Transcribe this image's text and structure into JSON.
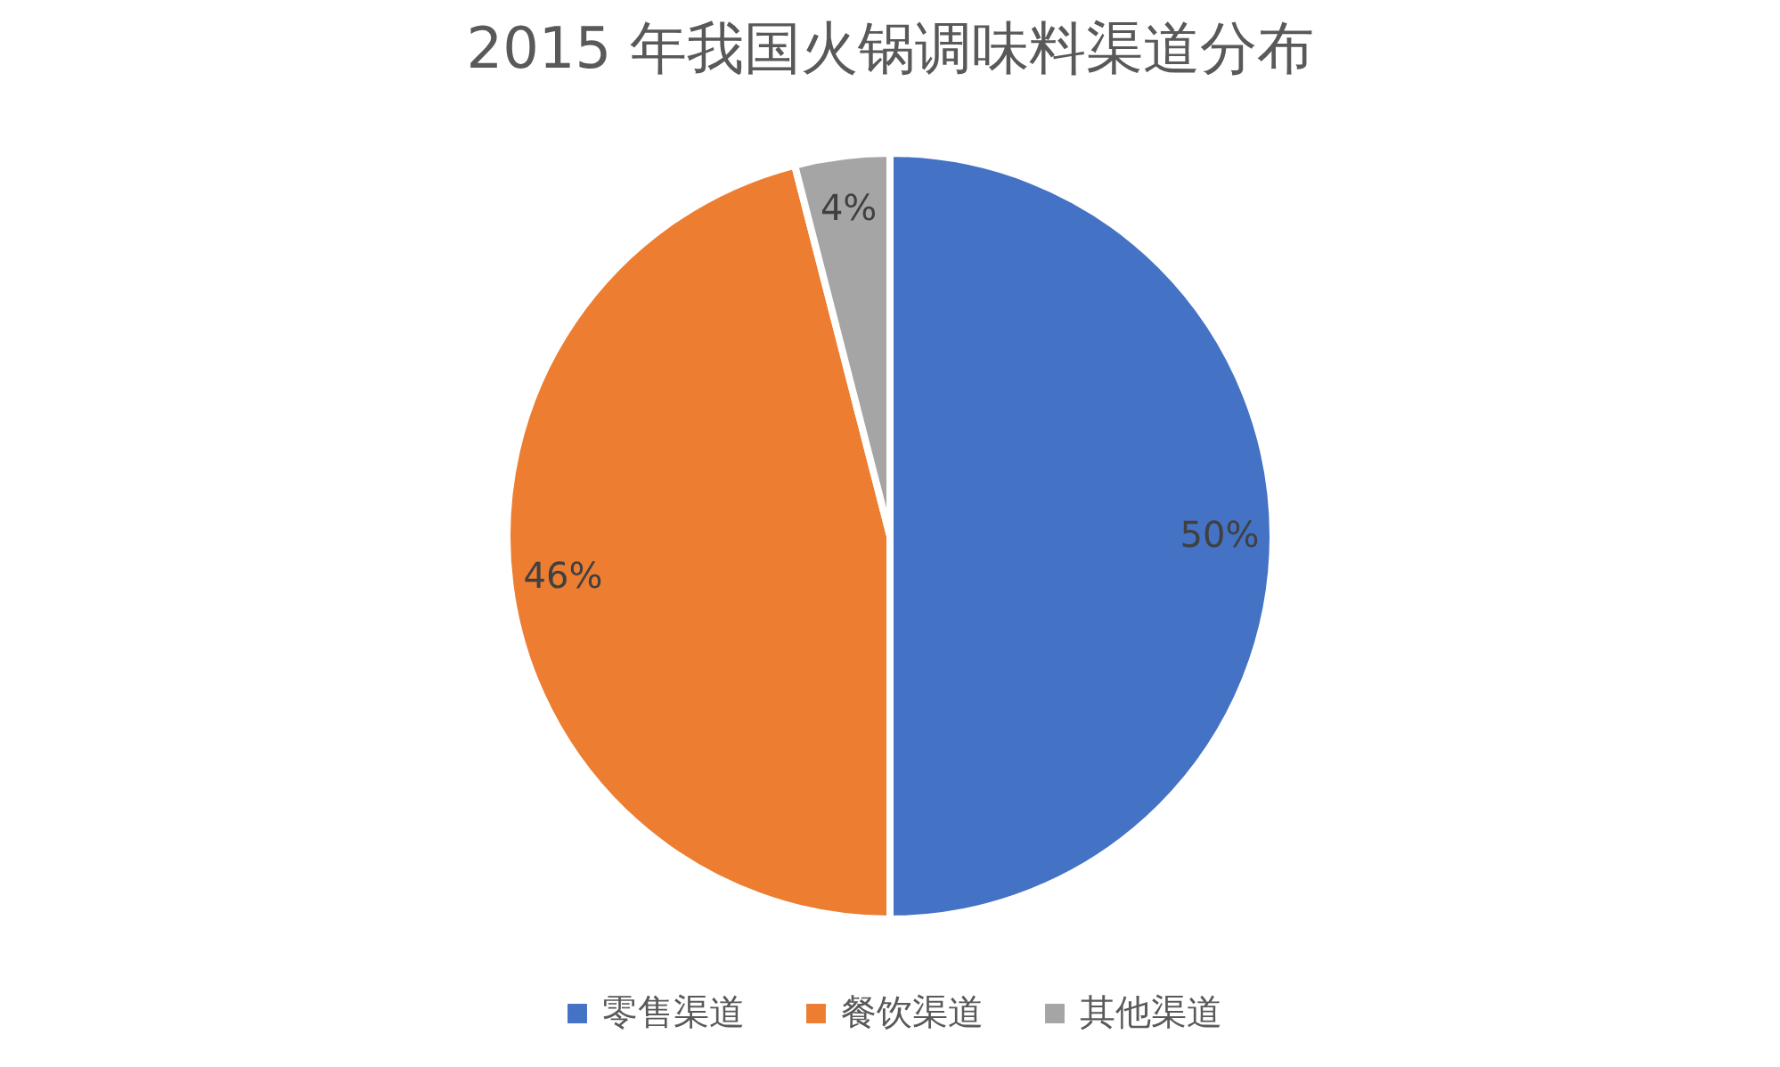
{
  "chart_data": {
    "type": "pie",
    "title": "2015 年我国火锅调味料渠道分布",
    "categories": [
      "零售渠道",
      "餐饮渠道",
      "其他渠道"
    ],
    "values": [
      50,
      46,
      4
    ],
    "value_labels": [
      "50%",
      "46%",
      "4%"
    ],
    "colors": [
      "#4472c4",
      "#ed7d31",
      "#a5a5a5"
    ],
    "legend": "bottom"
  }
}
